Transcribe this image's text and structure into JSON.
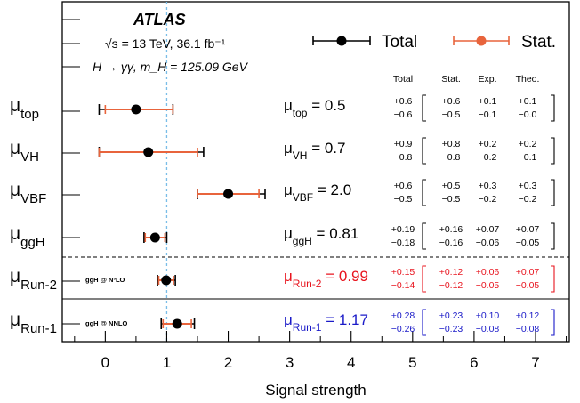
{
  "chart_data": {
    "type": "scatter",
    "experiment": "ATLAS",
    "energy_line": "√s = 13 TeV, 36.1 fb⁻¹",
    "process_line": "H → γγ, m_H = 125.09 GeV",
    "xlabel": "Signal strength",
    "xlim": [
      -0.7,
      7.55
    ],
    "x_ticks": [
      0,
      1,
      2,
      3,
      4,
      5,
      6,
      7
    ],
    "reference_line": 1,
    "legend": [
      {
        "name": "Total",
        "color": "#000000"
      },
      {
        "name": "Stat.",
        "color": "#e8643c"
      }
    ],
    "table_headers": [
      "Total",
      "Stat.",
      "Exp.",
      "Theo."
    ],
    "rows": [
      {
        "label_main": "μ",
        "label_sub": "top",
        "value": 0.5,
        "value_text": "0.5",
        "total": [
          "+0.6",
          "−0.6"
        ],
        "stat": [
          "+0.6",
          "−0.5"
        ],
        "exp": [
          "+0.1",
          "−0.1"
        ],
        "theo": [
          "+0.1",
          "−0.0"
        ],
        "total_lo": 0.6,
        "total_hi": 0.6,
        "stat_lo": 0.5,
        "stat_hi": 0.6,
        "color": "#000000",
        "note": ""
      },
      {
        "label_main": "μ",
        "label_sub": "VH",
        "value": 0.7,
        "value_text": "0.7",
        "total": [
          "+0.9",
          "−0.8"
        ],
        "stat": [
          "+0.8",
          "−0.8"
        ],
        "exp": [
          "+0.2",
          "−0.2"
        ],
        "theo": [
          "+0.2",
          "−0.1"
        ],
        "total_lo": 0.8,
        "total_hi": 0.9,
        "stat_lo": 0.8,
        "stat_hi": 0.8,
        "color": "#000000",
        "note": ""
      },
      {
        "label_main": "μ",
        "label_sub": "VBF",
        "value": 2.0,
        "value_text": "2.0",
        "total": [
          "+0.6",
          "−0.5"
        ],
        "stat": [
          "+0.5",
          "−0.5"
        ],
        "exp": [
          "+0.3",
          "−0.2"
        ],
        "theo": [
          "+0.3",
          "−0.2"
        ],
        "total_lo": 0.5,
        "total_hi": 0.6,
        "stat_lo": 0.5,
        "stat_hi": 0.5,
        "color": "#000000",
        "note": ""
      },
      {
        "label_main": "μ",
        "label_sub": "ggH",
        "value": 0.81,
        "value_text": "0.81",
        "total": [
          "+0.19",
          "−0.18"
        ],
        "stat": [
          "+0.16",
          "−0.16"
        ],
        "exp": [
          "+0.07",
          "−0.06"
        ],
        "theo": [
          "+0.07",
          "−0.05"
        ],
        "total_lo": 0.18,
        "total_hi": 0.19,
        "stat_lo": 0.16,
        "stat_hi": 0.16,
        "color": "#000000",
        "note": ""
      },
      {
        "label_main": "μ",
        "label_sub": "Run-2",
        "value": 0.99,
        "value_text": "0.99",
        "total": [
          "+0.15",
          "−0.14"
        ],
        "stat": [
          "+0.12",
          "−0.12"
        ],
        "exp": [
          "+0.06",
          "−0.05"
        ],
        "theo": [
          "+0.07",
          "−0.05"
        ],
        "total_lo": 0.14,
        "total_hi": 0.15,
        "stat_lo": 0.12,
        "stat_hi": 0.12,
        "color": "#e8141e",
        "note": "ggH @ N³LO"
      },
      {
        "label_main": "μ",
        "label_sub": "Run-1",
        "value": 1.17,
        "value_text": "1.17",
        "total": [
          "+0.28",
          "−0.26"
        ],
        "stat": [
          "+0.23",
          "−0.23"
        ],
        "exp": [
          "+0.10",
          "−0.08"
        ],
        "theo": [
          "+0.12",
          "−0.08"
        ],
        "total_lo": 0.26,
        "total_hi": 0.28,
        "stat_lo": 0.23,
        "stat_hi": 0.23,
        "color": "#1a1ac8",
        "note": "ggH @ NNLO"
      }
    ]
  }
}
